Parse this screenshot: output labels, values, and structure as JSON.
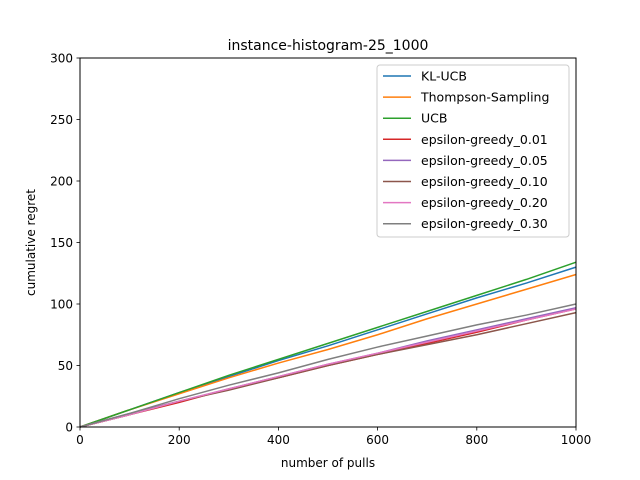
{
  "chart_data": {
    "type": "line",
    "title": "instance-histogram-25_1000",
    "xlabel": "number of pulls",
    "ylabel": "cumulative regret",
    "xlim": [
      0,
      1000
    ],
    "ylim": [
      0,
      300
    ],
    "xticks": [
      0,
      200,
      400,
      600,
      800,
      1000
    ],
    "yticks": [
      0,
      50,
      100,
      150,
      200,
      250,
      300
    ],
    "grid": false,
    "legend_position": "top-right",
    "x": [
      0,
      100,
      200,
      300,
      400,
      500,
      600,
      700,
      800,
      900,
      1000
    ],
    "series": [
      {
        "name": "KL-UCB",
        "color": "#1f77b4",
        "values": [
          0,
          14,
          28,
          41,
          54,
          66,
          79,
          92,
          105,
          117,
          130
        ]
      },
      {
        "name": "Thompson-Sampling",
        "color": "#ff7f0e",
        "values": [
          0,
          14,
          27,
          40,
          52,
          63,
          75,
          88,
          100,
          112,
          124
        ]
      },
      {
        "name": "UCB",
        "color": "#2ca02c",
        "values": [
          0,
          14,
          28,
          42,
          55,
          68,
          81,
          94,
          107,
          120,
          134
        ]
      },
      {
        "name": "epsilon-greedy_0.01",
        "color": "#d62728",
        "values": [
          0,
          10,
          20,
          31,
          40,
          50,
          59,
          68,
          77,
          87,
          96
        ]
      },
      {
        "name": "epsilon-greedy_0.05",
        "color": "#9467bd",
        "values": [
          0,
          11,
          21,
          31,
          41,
          51,
          60,
          70,
          79,
          88,
          97
        ]
      },
      {
        "name": "epsilon-greedy_0.10",
        "color": "#8c564b",
        "values": [
          0,
          10,
          21,
          30,
          40,
          50,
          59,
          67,
          75,
          84,
          93
        ]
      },
      {
        "name": "epsilon-greedy_0.20",
        "color": "#e377c2",
        "values": [
          0,
          10,
          21,
          31,
          41,
          51,
          60,
          69,
          78,
          87,
          96
        ]
      },
      {
        "name": "epsilon-greedy_0.30",
        "color": "#7f7f7f",
        "values": [
          0,
          11,
          23,
          34,
          44,
          55,
          65,
          74,
          83,
          91,
          100
        ]
      }
    ]
  }
}
